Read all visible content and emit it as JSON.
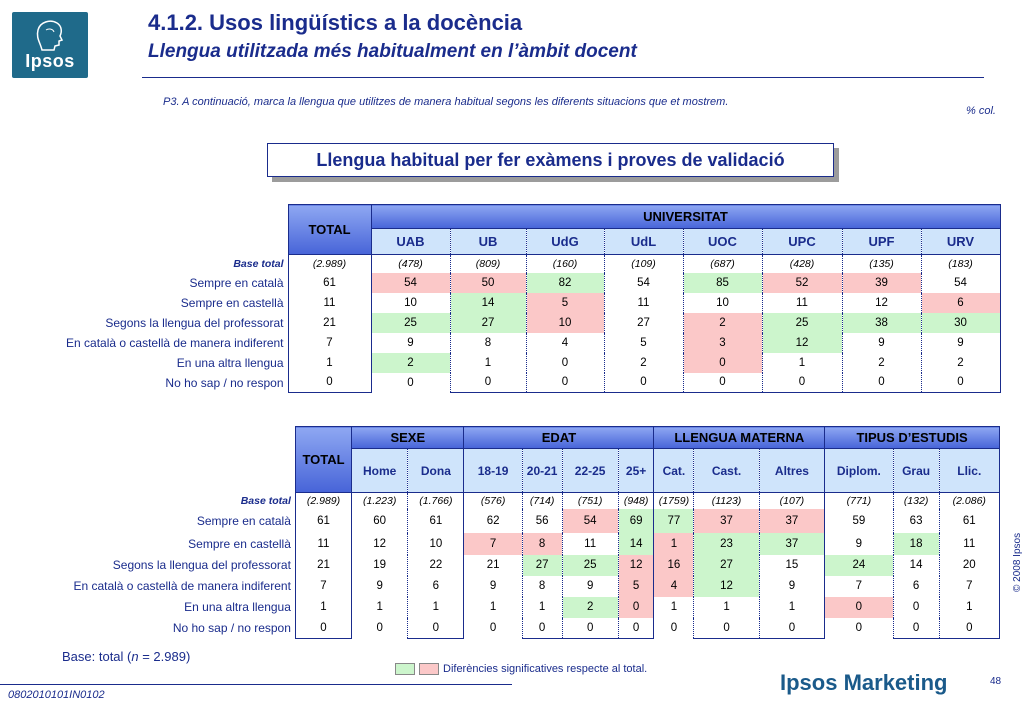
{
  "logo": {
    "text": "Ipsos"
  },
  "header": {
    "title": "4.1.2. Usos lingüístics a la docència",
    "subtitle": "Llengua utilitzada més habitualment en l’àmbit docent"
  },
  "question": "P3. A continuació, marca la llengua que utilitzes de manera habitual segons les diferents situacions que et mostrem.",
  "col_pct": "% col.",
  "box_title": "Llengua habitual per fer exàmens i proves de validació",
  "table1": {
    "total_label": "TOTAL",
    "group_label": "UNIVERSITAT",
    "columns": [
      "UAB",
      "UB",
      "UdG",
      "UdL",
      "UOC",
      "UPC",
      "UPF",
      "URV"
    ],
    "base_label": "Base total",
    "base": [
      "(2.989)",
      "(478)",
      "(809)",
      "(160)",
      "(109)",
      "(687)",
      "(428)",
      "(135)",
      "(183)"
    ],
    "rows": [
      {
        "label": "Sempre en català",
        "values": [
          "61",
          "54",
          "50",
          "82",
          "54",
          "85",
          "52",
          "39",
          "54"
        ],
        "flags": [
          "",
          "r",
          "r",
          "g",
          "",
          "g",
          "r",
          "r",
          ""
        ]
      },
      {
        "label": "Sempre en castellà",
        "values": [
          "11",
          "10",
          "14",
          "5",
          "11",
          "10",
          "11",
          "12",
          "6"
        ],
        "flags": [
          "",
          "",
          "g",
          "r",
          "",
          "",
          "",
          "",
          "r"
        ]
      },
      {
        "label": "Segons la llengua del professorat",
        "values": [
          "21",
          "25",
          "27",
          "10",
          "27",
          "2",
          "25",
          "38",
          "30"
        ],
        "flags": [
          "",
          "g",
          "g",
          "r",
          "",
          "r",
          "g",
          "g",
          "g"
        ]
      },
      {
        "label": "En català o castellà de manera indiferent",
        "values": [
          "7",
          "9",
          "8",
          "4",
          "5",
          "3",
          "12",
          "9",
          "9"
        ],
        "flags": [
          "",
          "",
          "",
          "",
          "",
          "r",
          "g",
          "",
          ""
        ]
      },
      {
        "label": "En una altra llengua",
        "values": [
          "1",
          "2",
          "1",
          "0",
          "2",
          "0",
          "1",
          "2",
          "2"
        ],
        "flags": [
          "",
          "g",
          "",
          "",
          "",
          "r",
          "",
          "",
          ""
        ]
      },
      {
        "label": "No ho sap / no respon",
        "values": [
          "0",
          "0",
          "0",
          "0",
          "0",
          "0",
          "0",
          "0",
          "0"
        ],
        "flags": [
          "",
          "",
          "",
          "",
          "",
          "",
          "",
          "",
          ""
        ]
      }
    ]
  },
  "table2": {
    "total_label": "TOTAL",
    "groups": [
      "SEXE",
      "EDAT",
      "LLENGUA MATERNA",
      "TIPUS D’ESTUDIS"
    ],
    "columns": [
      "Home",
      "Dona",
      "18-19",
      "20-21",
      "22-25",
      "25+",
      "Cat.",
      "Cast.",
      "Altres",
      "Diplom.",
      "Grau",
      "Llic."
    ],
    "base_label": "Base total",
    "base": [
      "(2.989)",
      "(1.223)",
      "(1.766)",
      "(576)",
      "(714)",
      "(751)",
      "(948)",
      "(1759)",
      "(1123)",
      "(107)",
      "(771)",
      "(132)",
      "(2.086)"
    ],
    "rows": [
      {
        "label": "Sempre en català",
        "values": [
          "61",
          "60",
          "61",
          "62",
          "56",
          "54",
          "69",
          "77",
          "37",
          "37",
          "59",
          "63",
          "61"
        ],
        "flags": [
          "",
          "",
          "",
          "",
          "",
          "r",
          "g",
          "g",
          "r",
          "r",
          "",
          "",
          ""
        ]
      },
      {
        "label": "Sempre en castellà",
        "values": [
          "11",
          "12",
          "10",
          "7",
          "8",
          "11",
          "14",
          "1",
          "23",
          "37",
          "9",
          "18",
          "11"
        ],
        "flags": [
          "",
          "",
          "",
          "r",
          "r",
          "",
          "g",
          "r",
          "g",
          "g",
          "",
          "g",
          ""
        ]
      },
      {
        "label": "Segons la llengua del professorat",
        "values": [
          "21",
          "19",
          "22",
          "21",
          "27",
          "25",
          "12",
          "16",
          "27",
          "15",
          "24",
          "14",
          "20"
        ],
        "flags": [
          "",
          "",
          "",
          "",
          "g",
          "g",
          "r",
          "r",
          "g",
          "",
          "g",
          "",
          ""
        ]
      },
      {
        "label": "En català o castellà de manera indiferent",
        "values": [
          "7",
          "9",
          "6",
          "9",
          "8",
          "9",
          "5",
          "4",
          "12",
          "9",
          "7",
          "6",
          "7"
        ],
        "flags": [
          "",
          "",
          "",
          "",
          "",
          "",
          "r",
          "r",
          "g",
          "",
          "",
          "",
          ""
        ]
      },
      {
        "label": "En una altra llengua",
        "values": [
          "1",
          "1",
          "1",
          "1",
          "1",
          "2",
          "0",
          "1",
          "1",
          "1",
          "0",
          "0",
          "1"
        ],
        "flags": [
          "",
          "",
          "",
          "",
          "",
          "g",
          "r",
          "",
          "",
          "",
          "r",
          "",
          ""
        ]
      },
      {
        "label": "No ho sap / no respon",
        "values": [
          "0",
          "0",
          "0",
          "0",
          "0",
          "0",
          "0",
          "0",
          "0",
          "0",
          "0",
          "0",
          "0"
        ],
        "flags": [
          "",
          "",
          "",
          "",
          "",
          "",
          "",
          "",
          "",
          "",
          "",
          "",
          ""
        ]
      }
    ]
  },
  "base_note": {
    "prefix": "Base: total (",
    "n": "n",
    "suffix": " = 2.989)"
  },
  "legend": {
    "text": "Diferències significatives respecte al total.",
    "green": "#ccf5cc",
    "red": "#fbc8c8"
  },
  "page_number": "48",
  "brand": "Ipsos Marketing",
  "footer_code": "0802010101IN0102",
  "copyright": "© 2008 Ipsos"
}
